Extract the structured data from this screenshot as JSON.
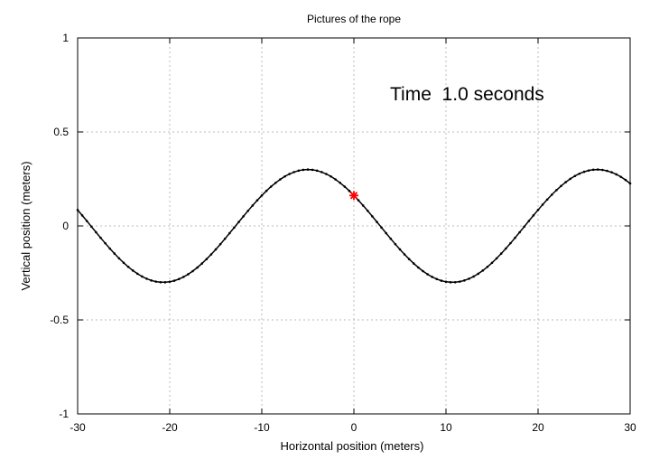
{
  "chart_data": {
    "type": "line",
    "title": "Pictures of the rope",
    "xlabel": "Horizontal position (meters)",
    "ylabel": "Vertical position (meters)",
    "xlim": [
      -30,
      30
    ],
    "ylim": [
      -1,
      1
    ],
    "xticks": [
      -30,
      -20,
      -10,
      0,
      10,
      20,
      30
    ],
    "xtick_labels": [
      "-30",
      "-20",
      "-10",
      "0",
      "10",
      "20",
      "30"
    ],
    "yticks": [
      -1,
      -0.5,
      0,
      0.5,
      1
    ],
    "ytick_labels": [
      "-1",
      "-0.5",
      "0",
      "0.5",
      "1"
    ],
    "grid": true,
    "annotation": "Time  1.0 seconds",
    "series": [
      {
        "name": "rope",
        "color": "#000000",
        "amplitude": 0.3,
        "wavenumber": 0.2,
        "phase_shift_x": -5,
        "x_step": 0.5
      }
    ],
    "marker": {
      "name": "tracked-point",
      "x": 0,
      "y": 0.162,
      "color": "#ff0000"
    }
  }
}
